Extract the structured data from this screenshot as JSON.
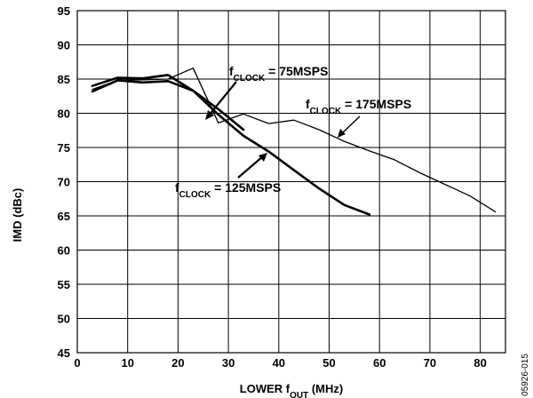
{
  "chart_data": {
    "type": "line",
    "xlabel": {
      "main": "LOWER f",
      "sub": "OUT",
      "suffix": " (MHz)"
    },
    "ylabel": "IMD (dBc)",
    "xlim": [
      0,
      85
    ],
    "ylim": [
      45,
      95
    ],
    "x_ticks": [
      0,
      10,
      20,
      30,
      40,
      50,
      60,
      70,
      80
    ],
    "y_ticks": [
      45,
      50,
      55,
      60,
      65,
      70,
      75,
      80,
      85,
      90,
      95
    ],
    "grid": true,
    "doc_id": "05926-015",
    "series": [
      {
        "name": "fCLOCK = 75MSPS",
        "label": {
          "f": "f",
          "sub": "CLOCK",
          "rest": " = 75MSPS"
        },
        "x": [
          3,
          8,
          13,
          18,
          23,
          28,
          33
        ],
        "y": [
          84.0,
          85.2,
          85.1,
          85.6,
          83.3,
          80.6,
          77.6
        ]
      },
      {
        "name": "fCLOCK = 125MSPS",
        "label": {
          "f": "f",
          "sub": "CLOCK",
          "rest": " = 125MSPS"
        },
        "x": [
          3,
          8,
          13,
          18,
          23,
          28,
          33,
          38,
          43,
          48,
          53,
          58
        ],
        "y": [
          83.2,
          84.8,
          84.5,
          84.7,
          83.3,
          79.8,
          76.7,
          74.4,
          71.7,
          69.0,
          66.6,
          65.2
        ]
      },
      {
        "name": "fCLOCK = 175MSPS",
        "label": {
          "f": "f",
          "sub": "CLOCK",
          "rest": " = 175MSPS"
        },
        "x": [
          3,
          8,
          13,
          18,
          23,
          28,
          33,
          38,
          43,
          48,
          53,
          58,
          63,
          68,
          73,
          78,
          83
        ],
        "y": [
          83.5,
          84.8,
          84.9,
          85.0,
          86.6,
          78.6,
          79.9,
          78.5,
          79.0,
          77.6,
          75.9,
          74.5,
          73.2,
          71.3,
          69.6,
          67.9,
          65.6
        ]
      }
    ]
  }
}
